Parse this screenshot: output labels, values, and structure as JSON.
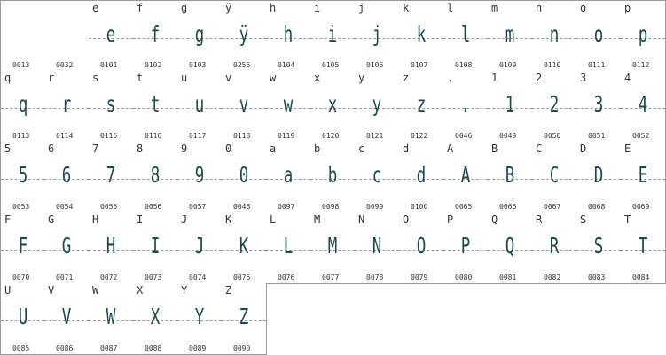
{
  "glyphs": [
    {
      "char": "",
      "code": "0013"
    },
    {
      "char": "",
      "code": "0032"
    },
    {
      "char": "e",
      "code": "0101"
    },
    {
      "char": "f",
      "code": "0102"
    },
    {
      "char": "g",
      "code": "0103"
    },
    {
      "char": "ÿ",
      "code": "0255"
    },
    {
      "char": "h",
      "code": "0104"
    },
    {
      "char": "i",
      "code": "0105"
    },
    {
      "char": "j",
      "code": "0106"
    },
    {
      "char": "k",
      "code": "0107"
    },
    {
      "char": "l",
      "code": "0108"
    },
    {
      "char": "m",
      "code": "0109"
    },
    {
      "char": "n",
      "code": "0110"
    },
    {
      "char": "o",
      "code": "0111"
    },
    {
      "char": "p",
      "code": "0112"
    },
    {
      "char": "q",
      "code": "0113"
    },
    {
      "char": "r",
      "code": "0114"
    },
    {
      "char": "s",
      "code": "0115"
    },
    {
      "char": "t",
      "code": "0116"
    },
    {
      "char": "u",
      "code": "0117"
    },
    {
      "char": "v",
      "code": "0118"
    },
    {
      "char": "w",
      "code": "0119"
    },
    {
      "char": "x",
      "code": "0120"
    },
    {
      "char": "y",
      "code": "0121"
    },
    {
      "char": "z",
      "code": "0122"
    },
    {
      "char": ".",
      "code": "0046"
    },
    {
      "char": "1",
      "code": "0049"
    },
    {
      "char": "2",
      "code": "0050"
    },
    {
      "char": "3",
      "code": "0051"
    },
    {
      "char": "4",
      "code": "0052"
    },
    {
      "char": "5",
      "code": "0053"
    },
    {
      "char": "6",
      "code": "0054"
    },
    {
      "char": "7",
      "code": "0055"
    },
    {
      "char": "8",
      "code": "0056"
    },
    {
      "char": "9",
      "code": "0057"
    },
    {
      "char": "0",
      "code": "0048"
    },
    {
      "char": "a",
      "code": "0097"
    },
    {
      "char": "b",
      "code": "0098"
    },
    {
      "char": "c",
      "code": "0099"
    },
    {
      "char": "d",
      "code": "0100"
    },
    {
      "char": "A",
      "code": "0065"
    },
    {
      "char": "B",
      "code": "0066"
    },
    {
      "char": "C",
      "code": "0067"
    },
    {
      "char": "D",
      "code": "0068"
    },
    {
      "char": "E",
      "code": "0069"
    },
    {
      "char": "F",
      "code": "0070"
    },
    {
      "char": "G",
      "code": "0071"
    },
    {
      "char": "H",
      "code": "0072"
    },
    {
      "char": "I",
      "code": "0073"
    },
    {
      "char": "J",
      "code": "0074"
    },
    {
      "char": "K",
      "code": "0075"
    },
    {
      "char": "L",
      "code": "0076"
    },
    {
      "char": "M",
      "code": "0077"
    },
    {
      "char": "N",
      "code": "0078"
    },
    {
      "char": "O",
      "code": "0079"
    },
    {
      "char": "P",
      "code": "0080"
    },
    {
      "char": "Q",
      "code": "0081"
    },
    {
      "char": "R",
      "code": "0082"
    },
    {
      "char": "S",
      "code": "0083"
    },
    {
      "char": "T",
      "code": "0084"
    },
    {
      "char": "U",
      "code": "0085"
    },
    {
      "char": "V",
      "code": "0086"
    },
    {
      "char": "W",
      "code": "0087"
    },
    {
      "char": "X",
      "code": "0088"
    },
    {
      "char": "Y",
      "code": "0089"
    },
    {
      "char": "Z",
      "code": "0090"
    }
  ],
  "colors": {
    "glyph": "#1e4b47",
    "grid": "#9a9a9a",
    "text": "#333333"
  }
}
